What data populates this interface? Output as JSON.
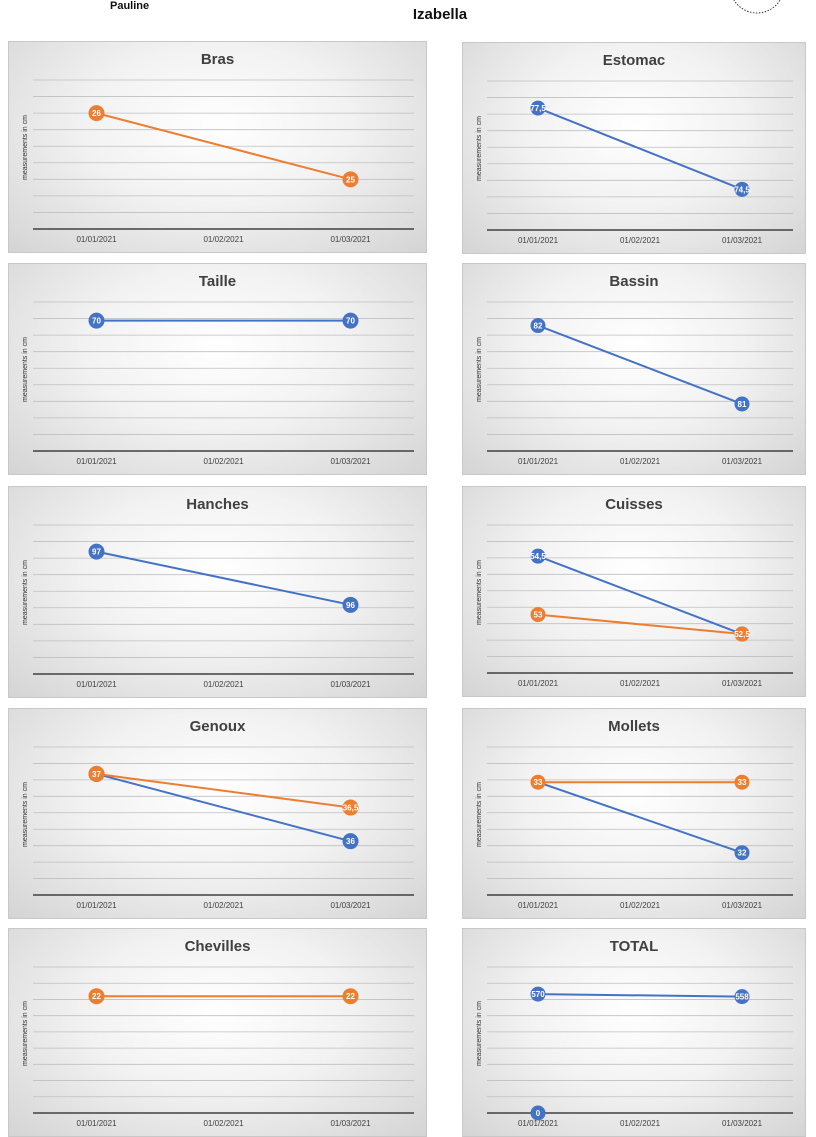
{
  "header": {
    "left_name": "Pauline",
    "center_name": "Izabella"
  },
  "colors": {
    "blue": "#4472c4",
    "orange": "#ed7d31",
    "grid": "#bfbfbf",
    "axis": "#404040"
  },
  "chart_data": [
    {
      "type": "line",
      "title": "Bras",
      "ylabel": "measurements in cm",
      "categories": [
        "01/01/2021",
        "01/02/2021",
        "01/03/2021"
      ],
      "ylim": [
        24.25,
        26.5
      ],
      "series": [
        {
          "color": "orange",
          "points": [
            [
              0,
              26,
              "26"
            ],
            [
              2,
              25,
              "25"
            ]
          ]
        }
      ]
    },
    {
      "type": "line",
      "title": "Estomac",
      "ylabel": "measurements in cm",
      "categories": [
        "01/01/2021",
        "01/02/2021",
        "01/03/2021"
      ],
      "ylim": [
        73,
        78.5
      ],
      "series": [
        {
          "color": "blue",
          "points": [
            [
              0,
              77.5,
              "77,5"
            ],
            [
              2,
              74.5,
              "74,5"
            ]
          ]
        }
      ]
    },
    {
      "type": "line",
      "title": "Taille",
      "ylabel": "measurements in cm",
      "categories": [
        "01/01/2021",
        "01/02/2021",
        "01/03/2021"
      ],
      "ylim": [
        63,
        71
      ],
      "series": [
        {
          "color": "blue",
          "points": [
            [
              0,
              70,
              "70"
            ],
            [
              2,
              70,
              "70"
            ]
          ]
        }
      ]
    },
    {
      "type": "line",
      "title": "Bassin",
      "ylabel": "measurements in cm",
      "categories": [
        "01/01/2021",
        "01/02/2021",
        "01/03/2021"
      ],
      "ylim": [
        80.4,
        82.3
      ],
      "series": [
        {
          "color": "blue",
          "points": [
            [
              0,
              82,
              "82"
            ],
            [
              2,
              81,
              "81"
            ]
          ]
        }
      ]
    },
    {
      "type": "line",
      "title": "Hanches",
      "ylabel": "measurements in cm",
      "categories": [
        "01/01/2021",
        "01/02/2021",
        "01/03/2021"
      ],
      "ylim": [
        94.7,
        97.5
      ],
      "series": [
        {
          "color": "blue",
          "points": [
            [
              0,
              97,
              "97"
            ],
            [
              2,
              96,
              "96"
            ]
          ]
        }
      ]
    },
    {
      "type": "line",
      "title": "Cuisses",
      "ylabel": "measurements in cm",
      "categories": [
        "01/01/2021",
        "01/02/2021",
        "01/03/2021"
      ],
      "ylim": [
        51.5,
        55.3
      ],
      "series": [
        {
          "color": "blue",
          "points": [
            [
              0,
              54.5,
              "54,5"
            ],
            [
              2,
              52.5,
              "52,5"
            ]
          ]
        },
        {
          "color": "orange",
          "points": [
            [
              0,
              53,
              "53"
            ],
            [
              2,
              52.5,
              "52,5"
            ]
          ]
        }
      ]
    },
    {
      "type": "line",
      "title": "Genoux",
      "ylabel": "measurements in cm",
      "categories": [
        "01/01/2021",
        "01/02/2021",
        "01/03/2021"
      ],
      "ylim": [
        35.2,
        37.4
      ],
      "series": [
        {
          "color": "blue",
          "points": [
            [
              0,
              37,
              "37"
            ],
            [
              2,
              36,
              "36"
            ]
          ]
        },
        {
          "color": "orange",
          "points": [
            [
              0,
              37,
              "37"
            ],
            [
              2,
              36.5,
              "36,5"
            ]
          ]
        }
      ]
    },
    {
      "type": "line",
      "title": "Mollets",
      "ylabel": "measurements in cm",
      "categories": [
        "01/01/2021",
        "01/02/2021",
        "01/03/2021"
      ],
      "ylim": [
        31.4,
        33.5
      ],
      "series": [
        {
          "color": "orange",
          "points": [
            [
              0,
              33,
              "33"
            ],
            [
              2,
              33,
              "33"
            ]
          ]
        },
        {
          "color": "blue",
          "points": [
            [
              0,
              33,
              ""
            ],
            [
              2,
              32,
              "32"
            ]
          ]
        }
      ]
    },
    {
      "type": "line",
      "title": "Chevilles",
      "ylabel": "measurements in cm",
      "categories": [
        "01/01/2021",
        "01/02/2021",
        "01/03/2021"
      ],
      "ylim": [
        18,
        23
      ],
      "series": [
        {
          "color": "orange",
          "points": [
            [
              0,
              22,
              "22"
            ],
            [
              2,
              22,
              "22"
            ]
          ]
        }
      ]
    },
    {
      "type": "line",
      "title": "TOTAL",
      "ylabel": "measurements in cm",
      "categories": [
        "01/01/2021",
        "01/02/2021",
        "01/03/2021"
      ],
      "ylim": [
        0,
        700
      ],
      "series": [
        {
          "color": "blue",
          "points": [
            [
              0,
              570,
              "570"
            ],
            [
              2,
              558,
              "558"
            ]
          ]
        },
        {
          "color": "blue",
          "points": [
            [
              0,
              0,
              "0"
            ]
          ]
        }
      ]
    }
  ]
}
